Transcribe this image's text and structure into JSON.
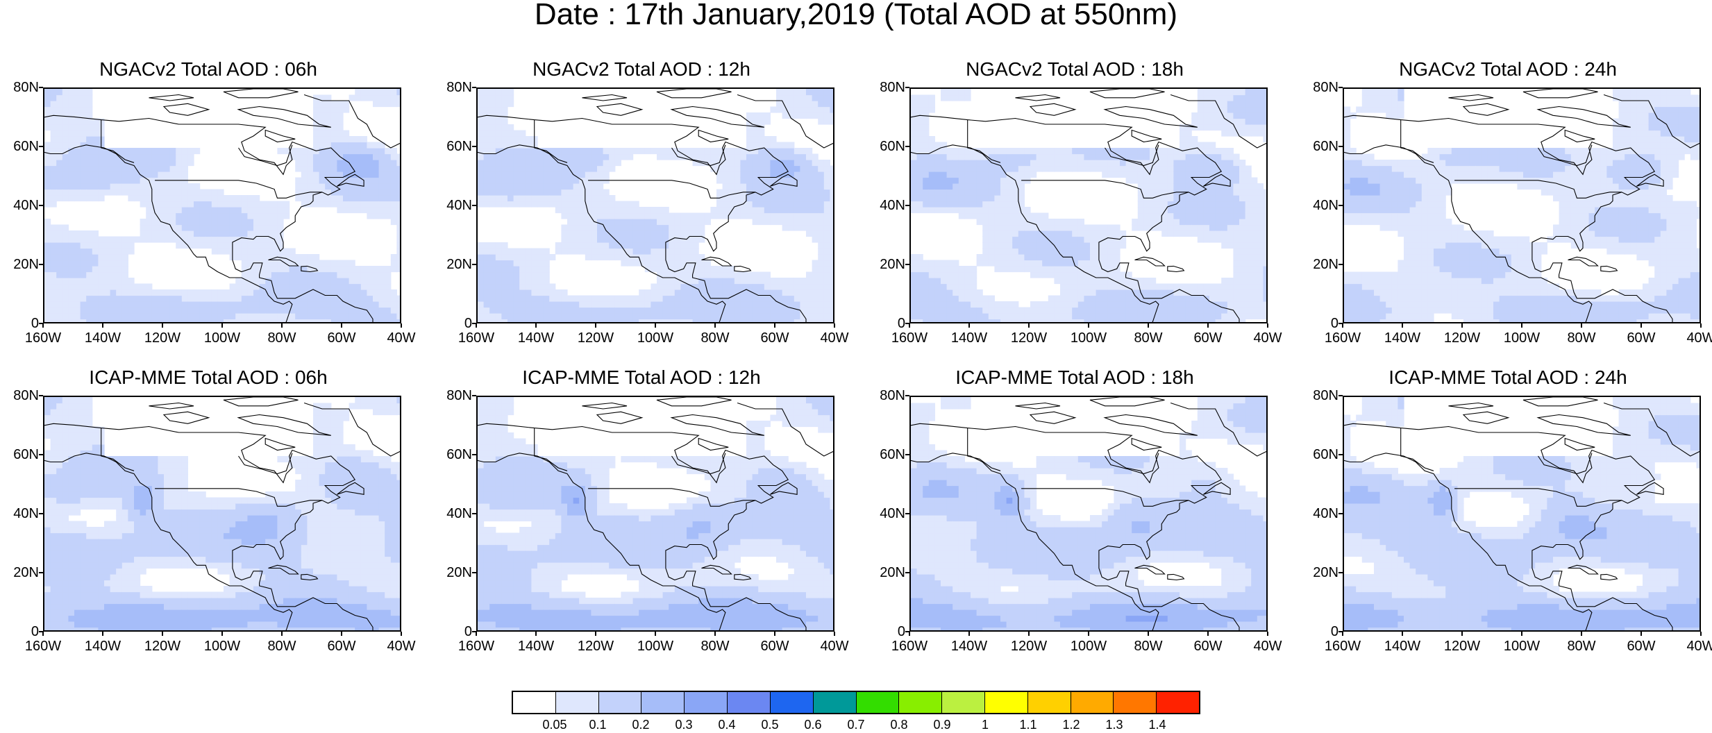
{
  "title": "Date : 17th January,2019 (Total AOD at 550nm)",
  "lat_labels": [
    "80N",
    "60N",
    "40N",
    "20N",
    "0"
  ],
  "lon_labels": [
    "160W",
    "140W",
    "120W",
    "100W",
    "80W",
    "60W",
    "40W"
  ],
  "panels": [
    {
      "title": "NGACv2 Total AOD : 06h"
    },
    {
      "title": "NGACv2 Total AOD : 12h"
    },
    {
      "title": "NGACv2 Total AOD : 18h"
    },
    {
      "title": "NGACv2 Total AOD : 24h"
    },
    {
      "title": "ICAP-MME Total AOD : 06h"
    },
    {
      "title": "ICAP-MME Total AOD : 12h"
    },
    {
      "title": "ICAP-MME Total AOD : 18h"
    },
    {
      "title": "ICAP-MME Total AOD : 24h"
    }
  ],
  "colorbar": {
    "colors": [
      "#ffffff",
      "#dfe7fd",
      "#c3d2fb",
      "#a6bdf9",
      "#8aa6f6",
      "#6b87f2",
      "#1e66f0",
      "#009999",
      "#33dd00",
      "#88ee00",
      "#bbf040",
      "#ffff00",
      "#ffd000",
      "#ffaa00",
      "#ff7700",
      "#ff2200"
    ],
    "labels": [
      "0.05",
      "0.1",
      "0.2",
      "0.3",
      "0.4",
      "0.5",
      "0.6",
      "0.7",
      "0.8",
      "0.9",
      "1",
      "1.1",
      "1.2",
      "1.3",
      "1.4"
    ]
  }
}
